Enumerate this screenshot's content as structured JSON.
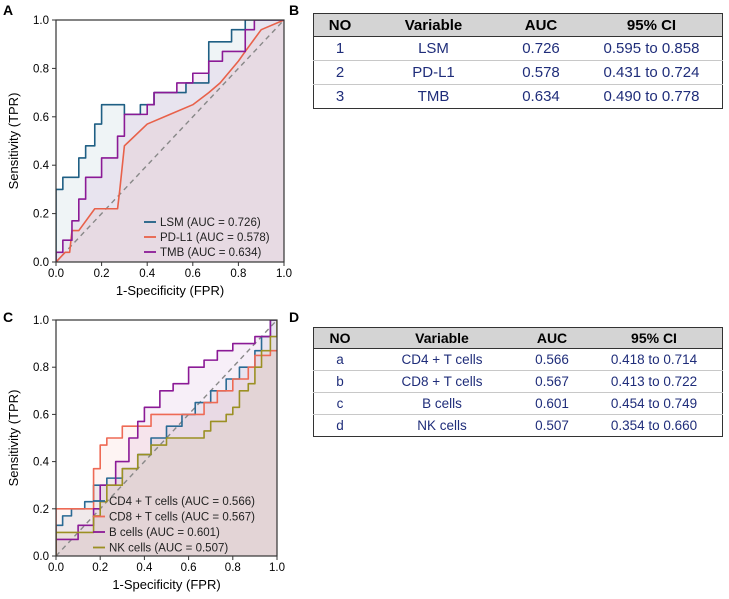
{
  "panels": {
    "a": "A",
    "b": "B",
    "c": "C",
    "d": "D"
  },
  "colors": {
    "lsm": "#1f5f84",
    "pdl1": "#e8614a",
    "tmb": "#8b1a96",
    "cd4": "#2a6a94",
    "cd8": "#ee6a55",
    "bcells": "#8b1a96",
    "nk": "#9b9023",
    "diag": "#888888"
  },
  "chart_data": [
    {
      "type": "line",
      "panel": "A",
      "xlabel": "1-Specificity (FPR)",
      "ylabel": "Sensitivity (TPR)",
      "xlim": [
        0,
        1
      ],
      "ylim": [
        0,
        1
      ],
      "xticks": [
        "0.0",
        "0.2",
        "0.4",
        "0.6",
        "0.8",
        "1.0"
      ],
      "yticks": [
        "0.0",
        "0.2",
        "0.4",
        "0.6",
        "0.8",
        "1.0"
      ],
      "legend_position": "bottom-right",
      "series": [
        {
          "key": "lsm",
          "name": "LSM (AUC = 0.726)",
          "step": true,
          "x": [
            0,
            0,
            0.03,
            0.03,
            0.1,
            0.1,
            0.13,
            0.13,
            0.17,
            0.17,
            0.2,
            0.2,
            0.3,
            0.3,
            0.37,
            0.37,
            0.43,
            0.43,
            0.57,
            0.57,
            0.67,
            0.67,
            0.77,
            0.77,
            0.83,
            0.83,
            1.0
          ],
          "y": [
            0,
            0.3,
            0.3,
            0.35,
            0.35,
            0.43,
            0.43,
            0.48,
            0.48,
            0.57,
            0.57,
            0.65,
            0.65,
            0.61,
            0.61,
            0.65,
            0.65,
            0.7,
            0.7,
            0.74,
            0.74,
            0.91,
            0.91,
            0.96,
            0.96,
            1.0,
            1.0
          ]
        },
        {
          "key": "pdl1",
          "name": "PD-L1 (AUC = 0.578)",
          "step": false,
          "x": [
            0,
            0.02,
            0.04,
            0.06,
            0.07,
            0.1,
            0.17,
            0.27,
            0.28,
            0.3,
            0.4,
            0.5,
            0.6,
            0.67,
            0.72,
            0.8,
            0.83,
            0.9,
            1.0
          ],
          "y": [
            0,
            0.02,
            0.04,
            0.04,
            0.13,
            0.13,
            0.22,
            0.22,
            0.3,
            0.48,
            0.57,
            0.61,
            0.65,
            0.7,
            0.74,
            0.83,
            0.87,
            0.96,
            1.0
          ]
        },
        {
          "key": "tmb",
          "name": "TMB (AUC = 0.634)",
          "step": true,
          "x": [
            0,
            0,
            0.03,
            0.03,
            0.07,
            0.07,
            0.1,
            0.1,
            0.13,
            0.13,
            0.2,
            0.2,
            0.27,
            0.27,
            0.3,
            0.3,
            0.4,
            0.4,
            0.43,
            0.43,
            0.53,
            0.53,
            0.6,
            0.6,
            0.67,
            0.67,
            0.73,
            0.73,
            0.83,
            0.83,
            0.87,
            0.87,
            1.0,
            1.0
          ],
          "y": [
            0,
            0.04,
            0.04,
            0.09,
            0.09,
            0.17,
            0.17,
            0.26,
            0.26,
            0.35,
            0.35,
            0.43,
            0.43,
            0.52,
            0.52,
            0.61,
            0.61,
            0.65,
            0.65,
            0.7,
            0.7,
            0.74,
            0.74,
            0.78,
            0.78,
            0.83,
            0.83,
            0.87,
            0.87,
            0.96,
            0.96,
            1.0,
            1.0,
            1.0
          ]
        }
      ]
    },
    {
      "type": "line",
      "panel": "C",
      "xlabel": "1-Specificity (FPR)",
      "ylabel": "Sensitivity (TPR)",
      "xlim": [
        0,
        1
      ],
      "ylim": [
        0,
        1
      ],
      "xticks": [
        "0.0",
        "0.2",
        "0.4",
        "0.6",
        "0.8",
        "1.0"
      ],
      "yticks": [
        "0.0",
        "0.2",
        "0.4",
        "0.6",
        "0.8",
        "1.0"
      ],
      "legend_position": "bottom-right",
      "series": [
        {
          "key": "cd4",
          "name": "CD4 + T cells (AUC = 0.566)",
          "step": true,
          "x": [
            0,
            0,
            0.03,
            0.03,
            0.07,
            0.07,
            0.13,
            0.13,
            0.17,
            0.17,
            0.23,
            0.23,
            0.3,
            0.3,
            0.37,
            0.37,
            0.43,
            0.43,
            0.5,
            0.5,
            0.57,
            0.57,
            0.63,
            0.63,
            0.7,
            0.7,
            0.77,
            0.77,
            0.83,
            0.83,
            0.9,
            0.9,
            0.93,
            0.93,
            0.97,
            0.97,
            1.0
          ],
          "y": [
            0,
            0.13,
            0.13,
            0.17,
            0.17,
            0.2,
            0.2,
            0.23,
            0.23,
            0.3,
            0.3,
            0.33,
            0.33,
            0.37,
            0.37,
            0.43,
            0.43,
            0.5,
            0.5,
            0.55,
            0.55,
            0.6,
            0.6,
            0.65,
            0.65,
            0.7,
            0.7,
            0.75,
            0.75,
            0.8,
            0.8,
            0.87,
            0.87,
            0.93,
            0.93,
            1.0,
            1.0
          ]
        },
        {
          "key": "cd8",
          "name": "CD8 + T cells (AUC = 0.567)",
          "step": true,
          "x": [
            0,
            0,
            0.17,
            0.17,
            0.2,
            0.2,
            0.23,
            0.23,
            0.3,
            0.3,
            0.43,
            0.43,
            0.67,
            0.67,
            0.73,
            0.73,
            0.8,
            0.8,
            0.87,
            0.87,
            0.9,
            0.9,
            0.97,
            0.97,
            1.0
          ],
          "y": [
            0,
            0.2,
            0.2,
            0.37,
            0.37,
            0.47,
            0.47,
            0.5,
            0.5,
            0.55,
            0.55,
            0.6,
            0.6,
            0.65,
            0.65,
            0.7,
            0.7,
            0.75,
            0.75,
            0.8,
            0.8,
            0.85,
            0.85,
            0.87,
            0.87
          ]
        },
        {
          "key": "bcells",
          "name": "B cells (AUC = 0.601)",
          "step": true,
          "x": [
            0,
            0,
            0.1,
            0.1,
            0.17,
            0.17,
            0.2,
            0.2,
            0.27,
            0.27,
            0.33,
            0.33,
            0.37,
            0.37,
            0.4,
            0.4,
            0.47,
            0.47,
            0.53,
            0.53,
            0.6,
            0.6,
            0.67,
            0.67,
            0.73,
            0.73,
            0.8,
            0.8,
            0.9,
            0.9,
            0.97,
            0.97,
            1.0,
            1.0
          ],
          "y": [
            0,
            0.07,
            0.07,
            0.13,
            0.13,
            0.2,
            0.2,
            0.3,
            0.3,
            0.4,
            0.4,
            0.5,
            0.5,
            0.57,
            0.57,
            0.63,
            0.63,
            0.7,
            0.7,
            0.73,
            0.73,
            0.8,
            0.8,
            0.83,
            0.83,
            0.87,
            0.87,
            0.9,
            0.9,
            0.93,
            0.93,
            1.0,
            1.0,
            1.0
          ]
        },
        {
          "key": "nk",
          "name": "NK cells (AUC = 0.507)",
          "step": true,
          "x": [
            0,
            0,
            0.17,
            0.17,
            0.2,
            0.2,
            0.23,
            0.23,
            0.3,
            0.3,
            0.37,
            0.37,
            0.43,
            0.43,
            0.5,
            0.5,
            0.67,
            0.67,
            0.7,
            0.7,
            0.77,
            0.77,
            0.8,
            0.8,
            0.83,
            0.83,
            0.87,
            0.87,
            0.9,
            0.9,
            0.93,
            0.93,
            0.97,
            0.97,
            1.0,
            1.0
          ],
          "y": [
            0,
            0.1,
            0.1,
            0.17,
            0.17,
            0.23,
            0.23,
            0.3,
            0.3,
            0.37,
            0.37,
            0.43,
            0.43,
            0.47,
            0.47,
            0.5,
            0.5,
            0.53,
            0.53,
            0.57,
            0.57,
            0.6,
            0.6,
            0.63,
            0.63,
            0.7,
            0.7,
            0.73,
            0.73,
            0.8,
            0.8,
            0.87,
            0.87,
            0.93,
            0.93,
            1.0
          ]
        }
      ]
    }
  ],
  "tableB": {
    "headers": [
      "NO",
      "Variable",
      "AUC",
      "95% CI"
    ],
    "rows": [
      [
        "1",
        "LSM",
        "0.726",
        "0.595 to 0.858"
      ],
      [
        "2",
        "PD-L1",
        "0.578",
        "0.431 to 0.724"
      ],
      [
        "3",
        "TMB",
        "0.634",
        "0.490 to 0.778"
      ]
    ]
  },
  "tableD": {
    "headers": [
      "NO",
      "Variable",
      "AUC",
      "95% CI"
    ],
    "rows": [
      [
        "a",
        "CD4 + T cells",
        "0.566",
        "0.418 to 0.714"
      ],
      [
        "b",
        "CD8 + T cells",
        "0.567",
        "0.413 to 0.722"
      ],
      [
        "c",
        "B cells",
        "0.601",
        "0.454 to 0.749"
      ],
      [
        "d",
        "NK cells",
        "0.507",
        "0.354 to 0.660"
      ]
    ]
  }
}
